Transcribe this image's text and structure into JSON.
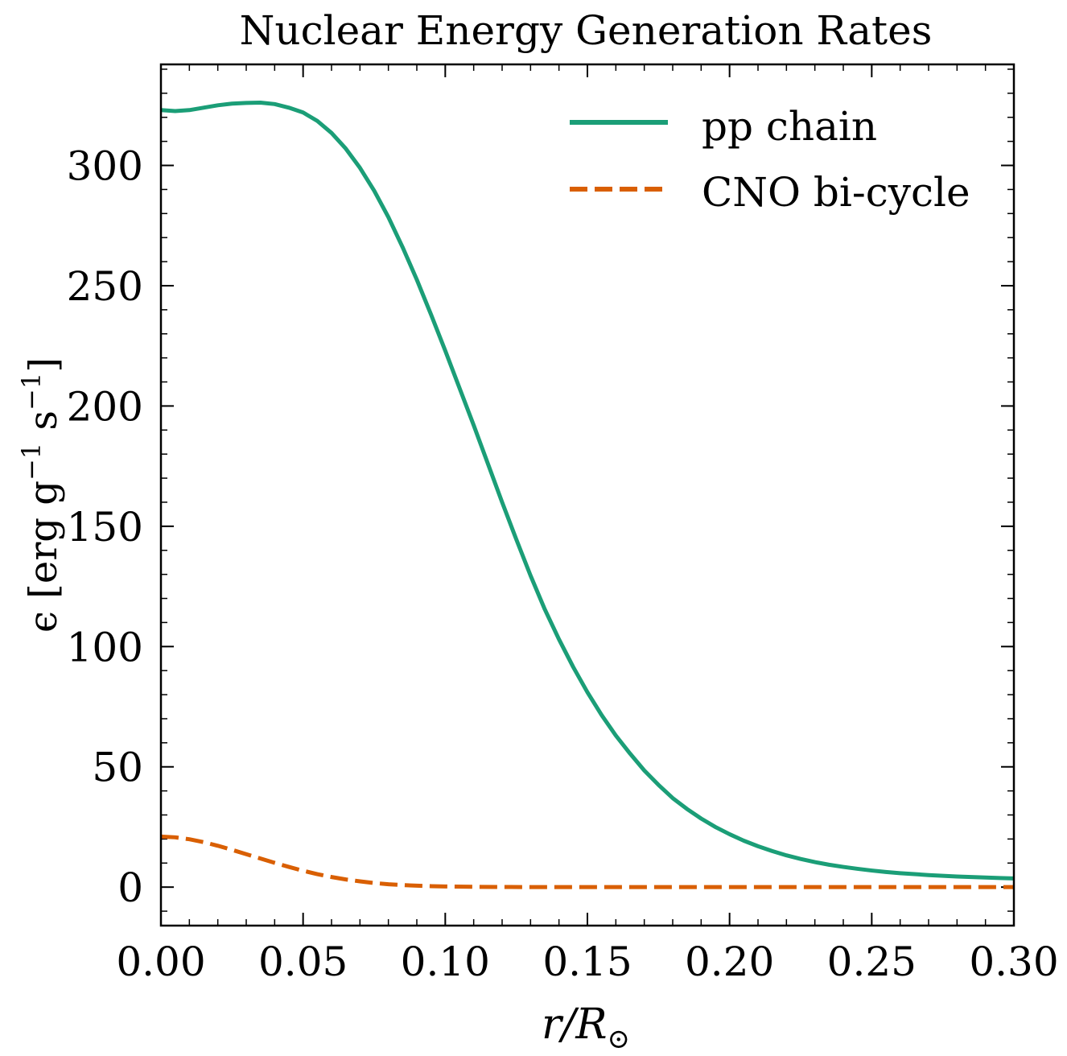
{
  "chart_data": {
    "type": "line",
    "title": "Nuclear Energy Generation Rates",
    "xlabel": {
      "var": "r/R",
      "sub": "⊙"
    },
    "ylabel": {
      "lead": "ϵ [erg g",
      "sup1": "−1",
      "mid": " s",
      "sup2": "−1",
      "tail": "]"
    },
    "xlim": [
      0.0,
      0.3
    ],
    "ylim": [
      -16,
      342
    ],
    "xticks": [
      0.0,
      0.05,
      0.1,
      0.15,
      0.2,
      0.25,
      0.3
    ],
    "xtick_labels": [
      "0.00",
      "0.05",
      "0.10",
      "0.15",
      "0.20",
      "0.25",
      "0.30"
    ],
    "yticks": [
      0,
      50,
      100,
      150,
      200,
      250,
      300
    ],
    "ytick_labels": [
      "0",
      "50",
      "100",
      "150",
      "200",
      "250",
      "300"
    ],
    "grid": false,
    "legend_position": "top-right",
    "series": [
      {
        "name": "pp chain",
        "color": "#1b9e77",
        "style": "solid",
        "x": [
          0.0,
          0.005,
          0.01,
          0.015,
          0.02,
          0.025,
          0.03,
          0.035,
          0.04,
          0.045,
          0.05,
          0.055,
          0.06,
          0.065,
          0.07,
          0.075,
          0.08,
          0.085,
          0.09,
          0.095,
          0.1,
          0.105,
          0.11,
          0.115,
          0.12,
          0.125,
          0.13,
          0.135,
          0.14,
          0.145,
          0.15,
          0.155,
          0.16,
          0.165,
          0.17,
          0.175,
          0.18,
          0.185,
          0.19,
          0.195,
          0.2,
          0.205,
          0.21,
          0.215,
          0.22,
          0.225,
          0.23,
          0.235,
          0.24,
          0.245,
          0.25,
          0.255,
          0.26,
          0.265,
          0.27,
          0.275,
          0.28,
          0.285,
          0.29,
          0.295,
          0.3
        ],
        "y": [
          323.0,
          322.6,
          323.0,
          324.0,
          325.0,
          325.7,
          326.0,
          326.1,
          325.5,
          324.0,
          322.0,
          318.5,
          313.5,
          307.0,
          299.0,
          289.5,
          278.5,
          266.0,
          252.5,
          238.0,
          223.0,
          207.5,
          192.0,
          176.0,
          160.0,
          144.5,
          129.5,
          115.5,
          103.0,
          91.5,
          81.0,
          71.5,
          63.0,
          55.5,
          48.5,
          42.5,
          37.0,
          32.5,
          28.5,
          25.0,
          22.0,
          19.3,
          17.0,
          15.0,
          13.2,
          11.7,
          10.4,
          9.3,
          8.4,
          7.6,
          6.9,
          6.3,
          5.8,
          5.4,
          5.0,
          4.7,
          4.4,
          4.2,
          4.0,
          3.8,
          3.6
        ]
      },
      {
        "name": "CNO bi-cycle",
        "color": "#d95f02",
        "style": "dashed",
        "x": [
          0.0,
          0.005,
          0.01,
          0.015,
          0.02,
          0.025,
          0.03,
          0.035,
          0.04,
          0.045,
          0.05,
          0.055,
          0.06,
          0.065,
          0.07,
          0.075,
          0.08,
          0.085,
          0.09,
          0.095,
          0.1,
          0.11,
          0.12,
          0.13,
          0.14,
          0.15,
          0.16,
          0.18,
          0.2,
          0.22,
          0.24,
          0.26,
          0.28,
          0.3
        ],
        "y": [
          21.0,
          20.7,
          19.9,
          18.7,
          17.2,
          15.5,
          13.7,
          11.9,
          10.1,
          8.4,
          6.8,
          5.4,
          4.2,
          3.2,
          2.4,
          1.7,
          1.2,
          0.85,
          0.6,
          0.4,
          0.27,
          0.12,
          0.05,
          0.02,
          0.01,
          0.0,
          0.0,
          0.0,
          0.0,
          0.0,
          0.0,
          0.0,
          0.0,
          0.0
        ]
      }
    ]
  }
}
